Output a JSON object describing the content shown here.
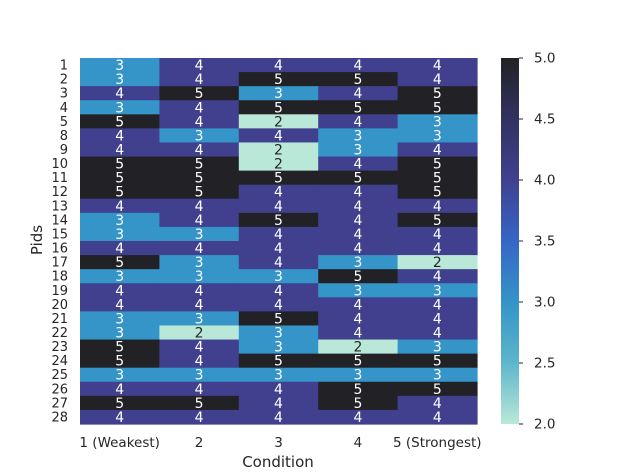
{
  "chart_data": {
    "type": "heatmap",
    "title": "",
    "xlabel": "Condition",
    "ylabel": "Pids",
    "categories": [
      "1 (Weakest)",
      "2",
      "3",
      "4",
      "5 (Strongest)"
    ],
    "rows": [
      "1",
      "2",
      "3",
      "4",
      "5",
      "8",
      "9",
      "10",
      "11",
      "12",
      "13",
      "14",
      "15",
      "16",
      "17",
      "18",
      "19",
      "20",
      "21",
      "22",
      "23",
      "24",
      "25",
      "26",
      "27",
      "28"
    ],
    "values": [
      [
        3,
        4,
        4,
        4,
        4
      ],
      [
        3,
        4,
        5,
        5,
        4
      ],
      [
        4,
        5,
        3,
        4,
        5
      ],
      [
        3,
        4,
        5,
        5,
        5
      ],
      [
        5,
        4,
        2,
        4,
        3
      ],
      [
        4,
        3,
        4,
        3,
        3
      ],
      [
        4,
        4,
        2,
        3,
        4
      ],
      [
        5,
        5,
        2,
        4,
        5
      ],
      [
        5,
        5,
        5,
        5,
        5
      ],
      [
        5,
        5,
        4,
        4,
        5
      ],
      [
        4,
        4,
        4,
        4,
        4
      ],
      [
        3,
        4,
        5,
        4,
        5
      ],
      [
        3,
        3,
        4,
        4,
        4
      ],
      [
        4,
        4,
        4,
        4,
        4
      ],
      [
        5,
        3,
        4,
        3,
        2
      ],
      [
        3,
        3,
        3,
        5,
        4
      ],
      [
        4,
        4,
        4,
        3,
        3
      ],
      [
        4,
        4,
        4,
        4,
        4
      ],
      [
        3,
        3,
        5,
        4,
        4
      ],
      [
        3,
        2,
        3,
        4,
        4
      ],
      [
        5,
        4,
        3,
        2,
        3
      ],
      [
        5,
        4,
        5,
        5,
        5
      ],
      [
        3,
        3,
        3,
        3,
        3
      ],
      [
        4,
        4,
        4,
        5,
        5
      ],
      [
        5,
        5,
        4,
        5,
        4
      ],
      [
        4,
        4,
        4,
        4,
        4
      ]
    ],
    "colorbar": {
      "min": 2.0,
      "max": 5.0,
      "ticks": [
        "2.0",
        "2.5",
        "3.0",
        "3.5",
        "4.0",
        "4.5",
        "5.0"
      ],
      "colors": {
        "2": "#b9e8d9",
        "3": "#3594c8",
        "4": "#40408f",
        "5": "#222226"
      }
    },
    "grid": false,
    "legend": "colorbar-right"
  }
}
